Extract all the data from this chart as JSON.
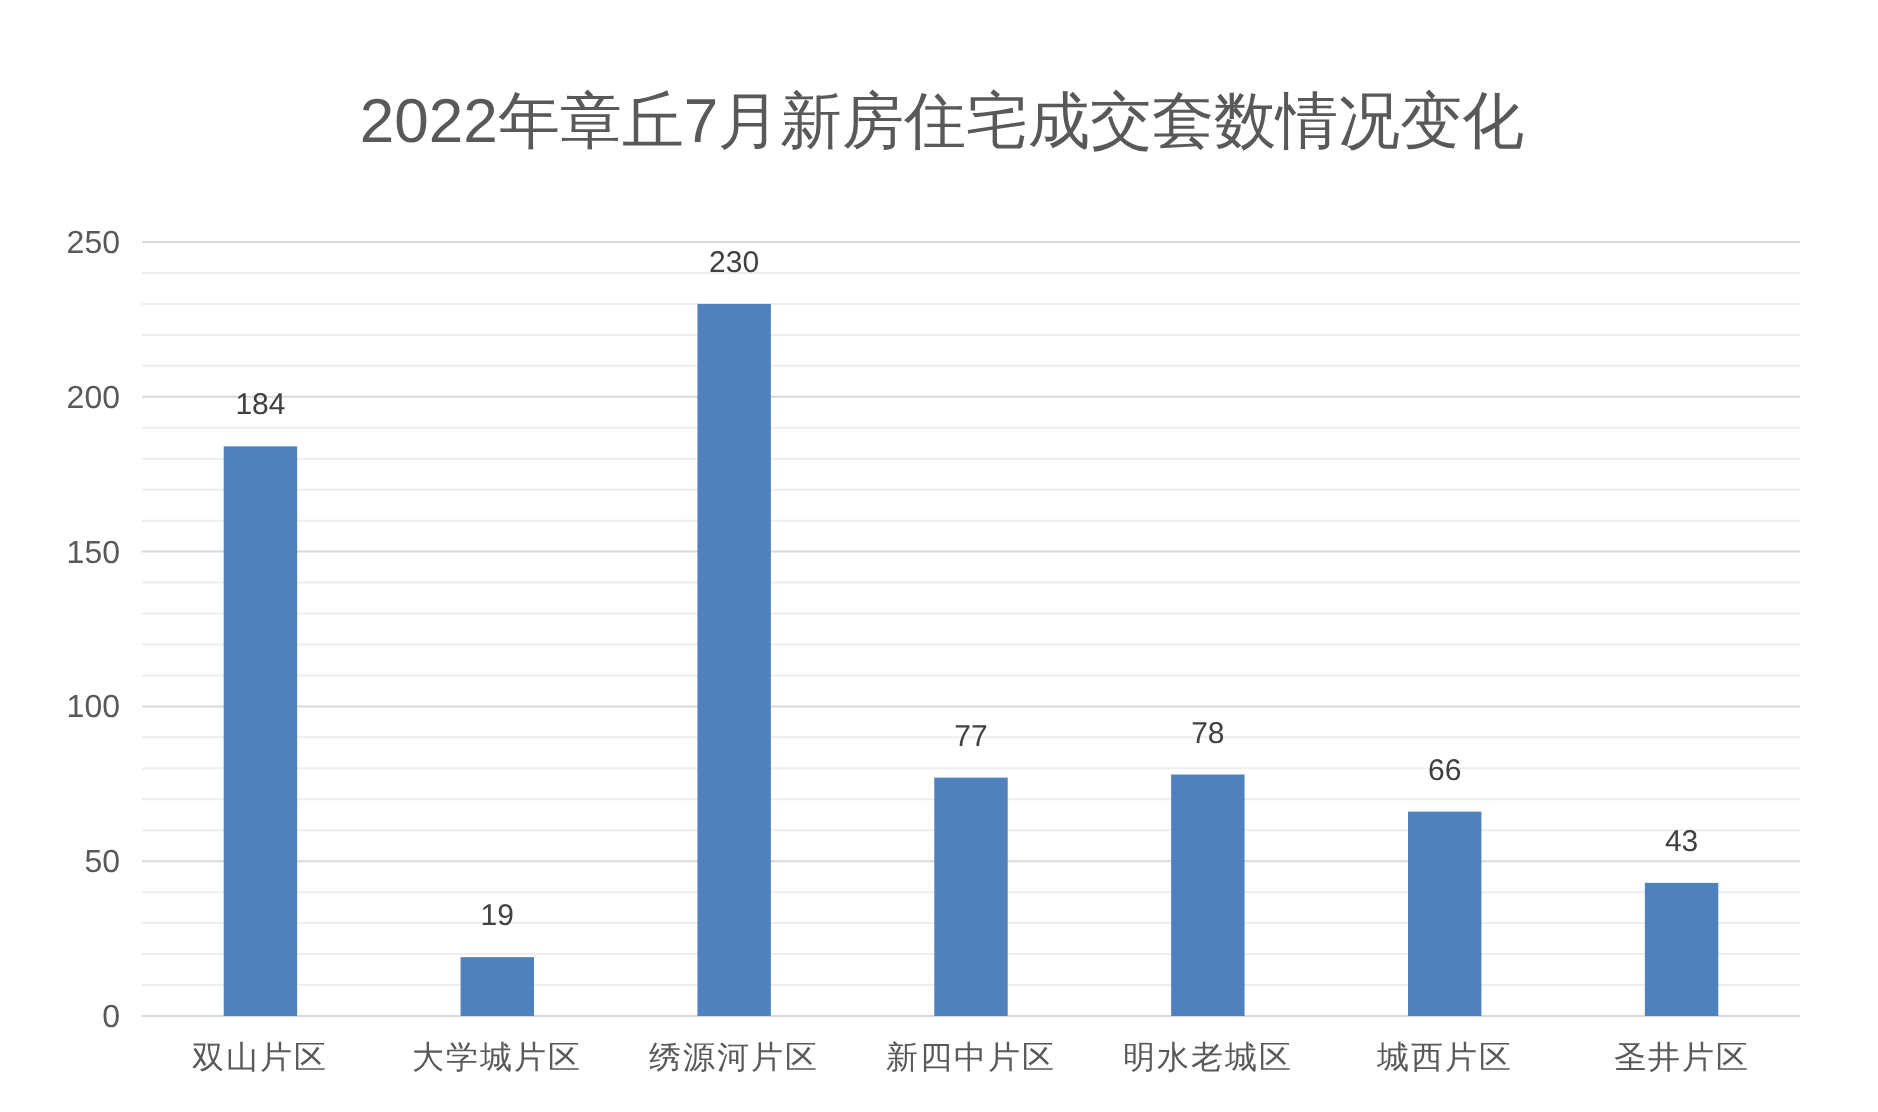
{
  "chart_data": {
    "type": "bar",
    "title": "2022年章丘7月新房住宅成交套数情况变化",
    "categories": [
      "双山片区",
      "大学城片区",
      "绣源河片区",
      "新四中片区",
      "明水老城区",
      "城西片区",
      "圣井片区"
    ],
    "values": [
      184,
      19,
      230,
      77,
      78,
      66,
      43
    ],
    "color": "#4f81bd",
    "ylim": [
      0,
      250
    ],
    "yticks": [
      0,
      {
        "value": 10,
        "label": null
      },
      {
        "value": 20,
        "label": null
      },
      {
        "value": 30,
        "label": null
      },
      {
        "value": 40,
        "label": null
      },
      50,
      {
        "value": 60,
        "label": null
      },
      {
        "value": 70,
        "label": null
      },
      {
        "value": 80,
        "label": null
      },
      {
        "value": 90,
        "label": null
      },
      100,
      {
        "value": 110,
        "label": null
      },
      {
        "value": 120,
        "label": null
      },
      {
        "value": 130,
        "label": null
      },
      {
        "value": 140,
        "label": null
      },
      150,
      {
        "value": 160,
        "label": null
      },
      {
        "value": 170,
        "label": null
      },
      {
        "value": 180,
        "label": null
      },
      {
        "value": 190,
        "label": null
      },
      200,
      {
        "value": 210,
        "label": null
      },
      {
        "value": 220,
        "label": null
      },
      {
        "value": 230,
        "label": null
      },
      {
        "value": 240,
        "label": null
      },
      250
    ],
    "grid": "y",
    "data_labels": true
  }
}
